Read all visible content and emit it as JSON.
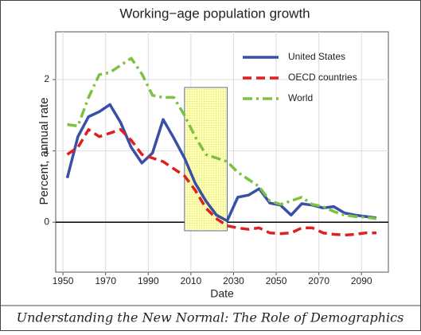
{
  "chart_data": {
    "type": "line",
    "title": "Working−age population growth",
    "xlabel": "Date",
    "ylabel": "Percent,  annual rate",
    "caption": "Understanding the New Normal: The Role of Demographics",
    "x": [
      1952,
      1957,
      1962,
      1967,
      1972,
      1977,
      1982,
      1987,
      1992,
      1997,
      2002,
      2007,
      2012,
      2017,
      2022,
      2027,
      2032,
      2037,
      2042,
      2047,
      2052,
      2057,
      2062,
      2067,
      2072,
      2077,
      2082,
      2087,
      2092,
      2097
    ],
    "series": [
      {
        "name": "United States",
        "color": "#3a4fa6",
        "style": "solid",
        "values": [
          0.62,
          1.2,
          1.48,
          1.55,
          1.65,
          1.4,
          1.05,
          0.83,
          0.97,
          1.44,
          1.18,
          0.9,
          0.55,
          0.3,
          0.1,
          0.02,
          0.35,
          0.38,
          0.47,
          0.27,
          0.24,
          0.1,
          0.26,
          0.24,
          0.2,
          0.22,
          0.13,
          0.1,
          0.08,
          0.06
        ]
      },
      {
        "name": "OECD countries",
        "color": "#e02020",
        "style": "dashed",
        "values": [
          0.95,
          1.05,
          1.3,
          1.2,
          1.25,
          1.3,
          1.15,
          0.95,
          0.9,
          0.85,
          0.75,
          0.65,
          0.45,
          0.2,
          0.05,
          -0.05,
          -0.08,
          -0.1,
          -0.08,
          -0.15,
          -0.16,
          -0.15,
          -0.08,
          -0.08,
          -0.15,
          -0.17,
          -0.18,
          -0.17,
          -0.15,
          -0.15
        ]
      },
      {
        "name": "World",
        "color": "#7cc142",
        "style": "dashdot",
        "values": [
          1.37,
          1.35,
          1.75,
          2.07,
          2.1,
          2.2,
          2.3,
          2.08,
          1.78,
          1.75,
          1.75,
          1.5,
          1.2,
          0.95,
          0.9,
          0.85,
          0.7,
          0.6,
          0.5,
          0.3,
          0.25,
          0.3,
          0.35,
          0.25,
          0.22,
          0.15,
          0.1,
          0.08,
          0.07,
          0.05
        ]
      }
    ],
    "highlight_region": {
      "x": [
        2007,
        2027
      ],
      "y": [
        -0.12,
        1.89
      ]
    },
    "xlim": [
      1946.6,
      2102.6
    ],
    "xticks": [
      1950,
      1970,
      1990,
      2010,
      2030,
      2050,
      2070,
      2090
    ],
    "ylim": [
      -0.7,
      2.67
    ],
    "yticks": [
      0,
      1,
      2
    ],
    "grid": true,
    "legend": "upper right"
  }
}
